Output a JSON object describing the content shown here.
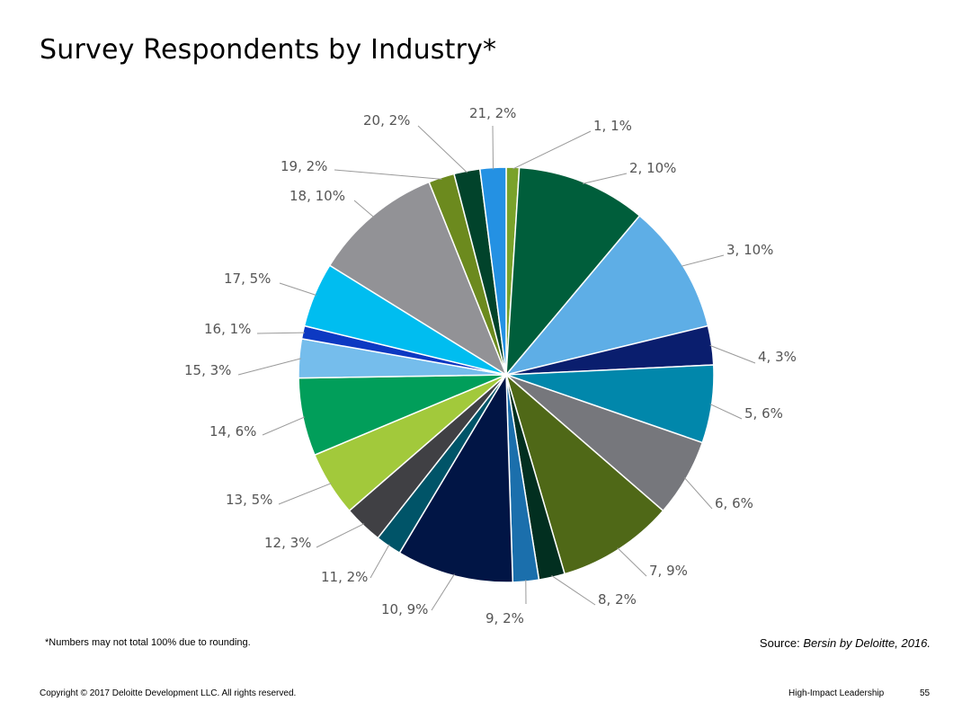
{
  "title": "Survey Respondents by Industry*",
  "footnote": "*Numbers may not total 100% due to rounding.",
  "source": {
    "prefix": "Source:",
    "reference": "Bersin by Deloitte, 2016."
  },
  "footer": {
    "copyright": "Copyright © 2017 Deloitte Development LLC. All rights reserved.",
    "deck_name": "High-Impact Leadership",
    "page_number": "55"
  },
  "chart_data": {
    "type": "pie",
    "title": "",
    "slices": [
      {
        "category": "1",
        "value": 1,
        "label": "1, 1%",
        "color": "#7aa22a"
      },
      {
        "category": "2",
        "value": 10,
        "label": "2, 10%",
        "color": "#005e3b"
      },
      {
        "category": "3",
        "value": 10,
        "label": "3, 10%",
        "color": "#5eaee6"
      },
      {
        "category": "4",
        "value": 3,
        "label": "4, 3%",
        "color": "#0a1e6e"
      },
      {
        "category": "5",
        "value": 6,
        "label": "5, 6%",
        "color": "#0187ab"
      },
      {
        "category": "6",
        "value": 6,
        "label": "6, 6%",
        "color": "#76777c"
      },
      {
        "category": "7",
        "value": 9,
        "label": "7, 9%",
        "color": "#4f6817"
      },
      {
        "category": "8",
        "value": 2,
        "label": "8, 2%",
        "color": "#022f20"
      },
      {
        "category": "9",
        "value": 2,
        "label": "9, 2%",
        "color": "#1b6fac"
      },
      {
        "category": "10",
        "value": 9,
        "label": "10, 9%",
        "color": "#011545"
      },
      {
        "category": "11",
        "value": 2,
        "label": "11, 2%",
        "color": "#005468"
      },
      {
        "category": "12",
        "value": 3,
        "label": "12, 3%",
        "color": "#404044"
      },
      {
        "category": "13",
        "value": 5,
        "label": "13, 5%",
        "color": "#a2c93b"
      },
      {
        "category": "14",
        "value": 6,
        "label": "14, 6%",
        "color": "#019e5a"
      },
      {
        "category": "15",
        "value": 3,
        "label": "15, 3%",
        "color": "#75bdec"
      },
      {
        "category": "16",
        "value": 1,
        "label": "16, 1%",
        "color": "#0d39c2"
      },
      {
        "category": "17",
        "value": 5,
        "label": "17, 5%",
        "color": "#00bdf0"
      },
      {
        "category": "18",
        "value": 10,
        "label": "18, 10%",
        "color": "#929296"
      },
      {
        "category": "19",
        "value": 2,
        "label": "19, 2%",
        "color": "#6c8a1e"
      },
      {
        "category": "20",
        "value": 2,
        "label": "20, 2%",
        "color": "#01432b"
      },
      {
        "category": "21",
        "value": 2,
        "label": "21, 2%",
        "color": "#2491e3"
      }
    ]
  }
}
